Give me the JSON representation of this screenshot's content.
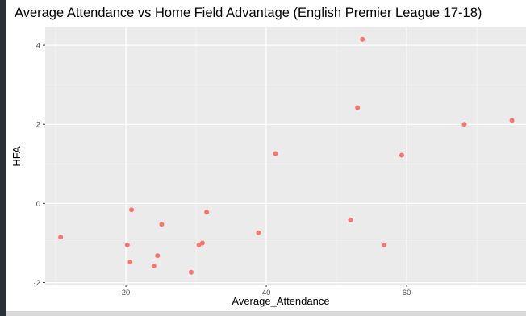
{
  "chart_data": {
    "type": "scatter",
    "title": "Average Attendance vs Home Field Advantage (English Premier League 17-18)",
    "xlabel": "Average_Attendance",
    "ylabel": "HFA",
    "xlim": [
      8.5,
      77
    ],
    "ylim": [
      -2.05,
      4.45
    ],
    "xticks": [
      20,
      40,
      60
    ],
    "yticks": [
      -2,
      0,
      2,
      4
    ],
    "x_tick_labels": [
      "20",
      "40",
      "60"
    ],
    "y_tick_labels": [
      "-2",
      "0",
      "2",
      "4"
    ],
    "grid": true,
    "point_color": "#f8766d",
    "panel_color": "#ebebeb",
    "grid_color": "#ffffff",
    "points": [
      {
        "x": 10.7,
        "y": -0.85
      },
      {
        "x": 20.2,
        "y": -1.05
      },
      {
        "x": 20.6,
        "y": -1.48
      },
      {
        "x": 20.8,
        "y": -0.16
      },
      {
        "x": 24.0,
        "y": -1.58
      },
      {
        "x": 24.5,
        "y": -1.32
      },
      {
        "x": 25.1,
        "y": -0.53
      },
      {
        "x": 29.3,
        "y": -1.74
      },
      {
        "x": 30.4,
        "y": -1.05
      },
      {
        "x": 30.9,
        "y": -1.0
      },
      {
        "x": 31.5,
        "y": -0.22
      },
      {
        "x": 38.9,
        "y": -0.74
      },
      {
        "x": 41.3,
        "y": 1.26
      },
      {
        "x": 52.0,
        "y": -0.42
      },
      {
        "x": 53.0,
        "y": 2.42
      },
      {
        "x": 53.7,
        "y": 4.15
      },
      {
        "x": 56.8,
        "y": -1.05
      },
      {
        "x": 59.3,
        "y": 1.22
      },
      {
        "x": 68.2,
        "y": 2.0
      },
      {
        "x": 75.0,
        "y": 2.1
      }
    ]
  }
}
